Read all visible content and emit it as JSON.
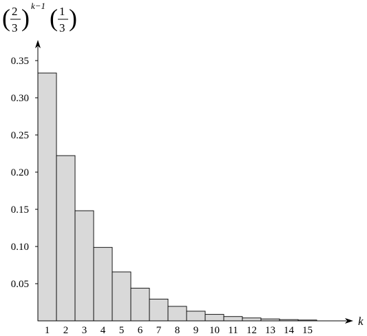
{
  "chart_data": {
    "type": "bar",
    "xlabel": "k",
    "ylabel": {
      "lead_paren_left": "(",
      "lead_paren_right": ")",
      "frac1_num": "2",
      "frac1_den": "3",
      "exponent": "k−1",
      "frac2_num": "1",
      "frac2_den": "3"
    },
    "categories": [
      "1",
      "2",
      "3",
      "4",
      "5",
      "6",
      "7",
      "8",
      "9",
      "10",
      "11",
      "12",
      "13",
      "14",
      "15"
    ],
    "values": [
      0.3333,
      0.2222,
      0.1481,
      0.0988,
      0.0658,
      0.0439,
      0.0293,
      0.0195,
      0.013,
      0.0087,
      0.0058,
      0.0039,
      0.0026,
      0.0017,
      0.0011
    ],
    "y_ticks": [
      "0.05",
      "0.10",
      "0.15",
      "0.20",
      "0.25",
      "0.30",
      "0.35"
    ],
    "ylim": [
      0,
      0.35
    ],
    "grid": false,
    "legend": "none",
    "bar_color": "#d9d9d9",
    "axis_color": "#000000"
  }
}
